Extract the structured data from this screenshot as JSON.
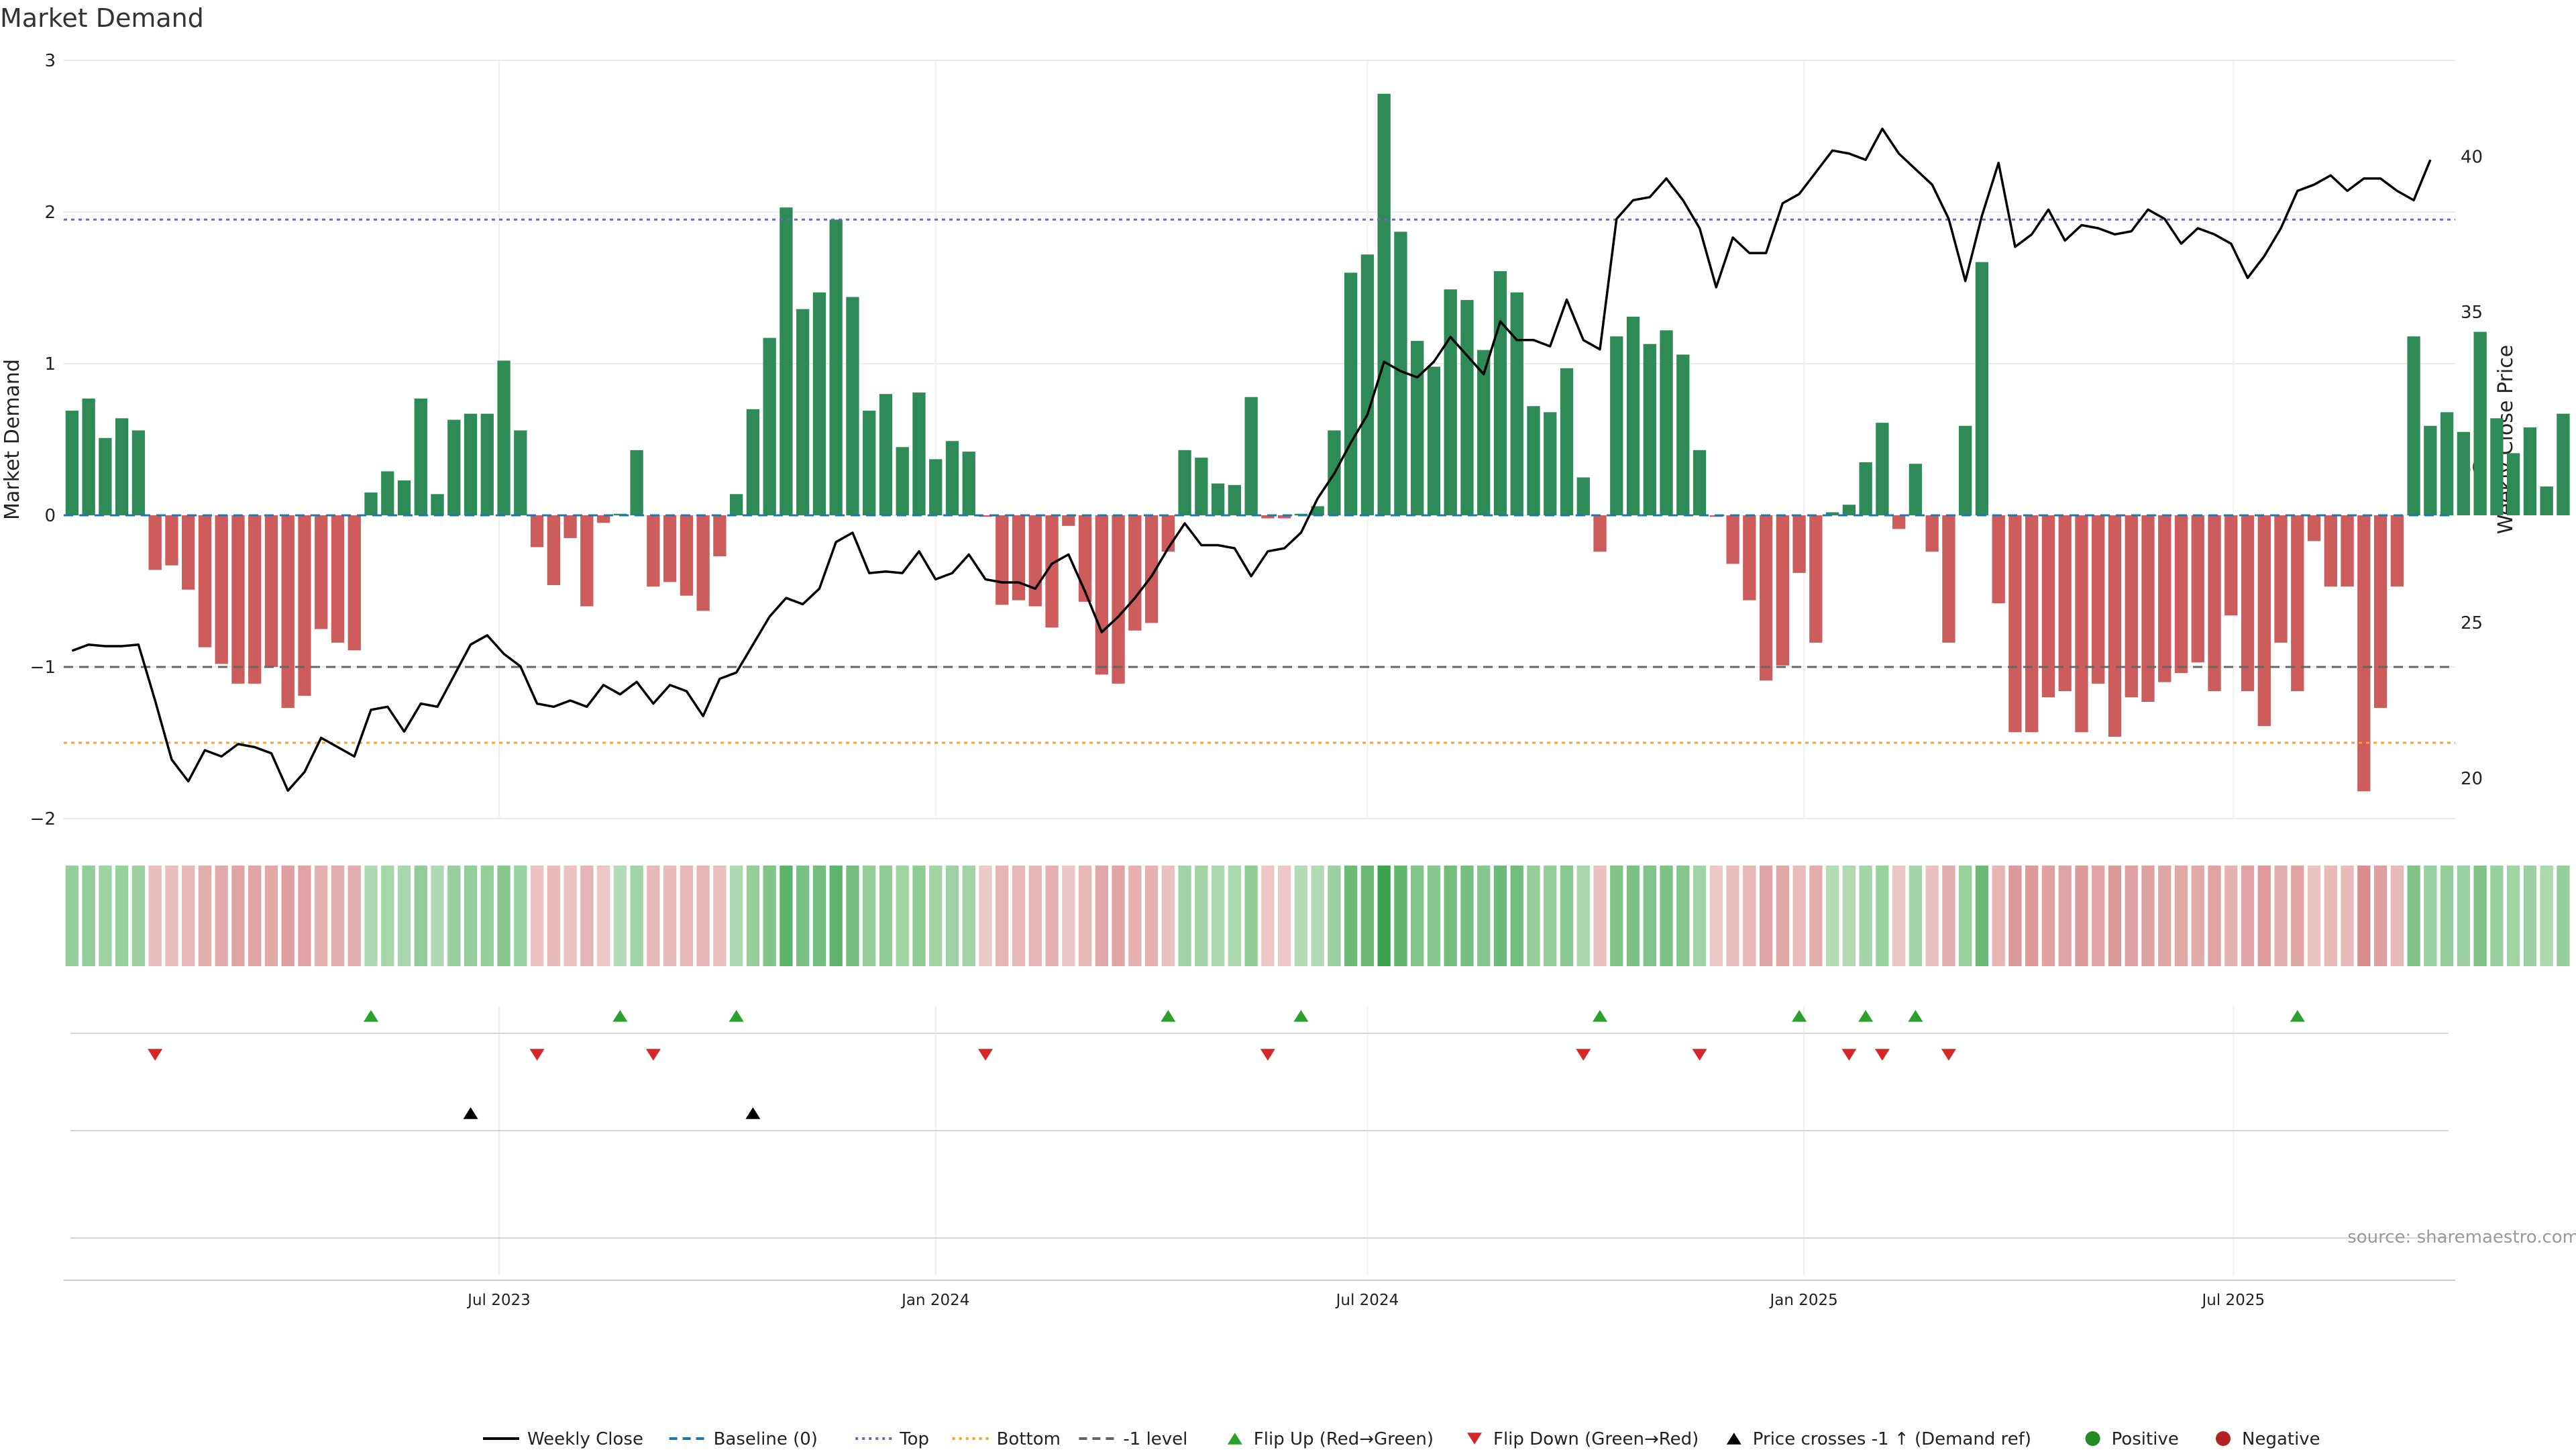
{
  "chart_data": {
    "type": "bar",
    "title": "Market Demand",
    "ylabel": "Market Demand",
    "y2label": "Weekly Close Price",
    "ylim": [
      -2,
      3
    ],
    "y2lim": [
      18.7,
      43.1
    ],
    "yticks": [
      3,
      2,
      1,
      0,
      -1,
      -2
    ],
    "ytick_labels": [
      "3",
      "2",
      "1",
      "0",
      "−1",
      "−2"
    ],
    "y2ticks": [
      40,
      35,
      30,
      25,
      20
    ],
    "y2tick_labels": [
      "40",
      "35",
      "30",
      "25",
      "20"
    ],
    "x_start": "2023-01-02",
    "week_count": 144,
    "xticks": [
      {
        "date": "2023-07-01",
        "label": "Jul 2023"
      },
      {
        "date": "2024-01-01",
        "label": "Jan 2024"
      },
      {
        "date": "2024-07-01",
        "label": "Jul 2024"
      },
      {
        "date": "2025-01-01",
        "label": "Jan 2025"
      },
      {
        "date": "2025-07-01",
        "label": "Jul 2025"
      }
    ],
    "demand": [
      0.69,
      0.77,
      0.51,
      0.64,
      0.56,
      -0.36,
      -0.33,
      -0.49,
      -0.87,
      -0.98,
      -1.11,
      -1.11,
      -1.0,
      -1.27,
      -1.19,
      -0.75,
      -0.84,
      -0.89,
      0.15,
      0.29,
      0.23,
      0.77,
      0.14,
      0.63,
      0.67,
      0.67,
      1.02,
      0.56,
      -0.21,
      -0.46,
      -0.15,
      -0.6,
      -0.05,
      0.01,
      0.43,
      -0.47,
      -0.44,
      -0.53,
      -0.63,
      -0.27,
      0.14,
      0.7,
      1.17,
      2.03,
      1.36,
      1.47,
      1.95,
      1.44,
      0.69,
      0.8,
      0.45,
      0.81,
      0.37,
      0.49,
      0.42,
      -0.01,
      -0.59,
      -0.56,
      -0.6,
      -0.74,
      -0.07,
      -0.57,
      -1.05,
      -1.11,
      -0.76,
      -0.71,
      -0.24,
      0.43,
      0.38,
      0.21,
      0.2,
      0.78,
      -0.02,
      -0.02,
      0.01,
      0.06,
      0.56,
      1.6,
      1.72,
      2.78,
      1.87,
      1.15,
      0.98,
      1.49,
      1.42,
      1.09,
      1.61,
      1.47,
      0.72,
      0.68,
      0.97,
      0.25,
      -0.24,
      1.18,
      1.31,
      1.13,
      1.22,
      1.06,
      0.43,
      -0.01,
      -0.32,
      -0.56,
      -1.09,
      -0.99,
      -0.38,
      -0.84,
      0.02,
      0.07,
      0.35,
      0.61,
      -0.09,
      0.34,
      -0.24,
      -0.84,
      0.59,
      1.67,
      -0.58,
      -1.43,
      -1.43,
      -1.2,
      -1.16,
      -1.43,
      -1.11,
      -1.46,
      -1.2,
      -1.23,
      -1.1,
      -1.04,
      -0.97,
      -1.16,
      -0.66,
      -1.16,
      -1.39,
      -0.84,
      -1.16,
      -0.17,
      -0.47,
      -0.47,
      -1.82,
      -1.27,
      -0.47,
      1.18,
      0.59,
      0.68,
      0.55,
      1.21,
      0.64,
      0.41,
      0.58,
      0.19,
      0.67
    ],
    "series": [
      {
        "name": "Weekly Close",
        "values": [
          24.1,
          24.3,
          24.25,
          24.25,
          24.3,
          22.5,
          20.6,
          19.9,
          20.9,
          20.7,
          21.1,
          21.0,
          20.8,
          19.6,
          20.2,
          21.3,
          21.0,
          20.7,
          22.2,
          22.3,
          21.5,
          22.4,
          22.3,
          23.3,
          24.3,
          24.6,
          24.0,
          23.6,
          22.4,
          22.3,
          22.5,
          22.3,
          23.0,
          22.7,
          23.1,
          22.4,
          23.0,
          22.8,
          22.0,
          23.2,
          23.4,
          24.3,
          25.2,
          25.8,
          25.6,
          26.1,
          27.6,
          27.9,
          26.6,
          26.65,
          26.6,
          27.3,
          26.4,
          26.6,
          27.2,
          26.4,
          26.3,
          26.3,
          26.1,
          26.9,
          27.2,
          26.0,
          24.7,
          25.2,
          25.8,
          26.5,
          27.4,
          28.2,
          27.5,
          27.5,
          27.4,
          26.5,
          27.3,
          27.4,
          27.9,
          29.0,
          29.8,
          30.8,
          31.7,
          33.4,
          33.1,
          32.9,
          33.4,
          34.2,
          33.6,
          33.0,
          34.7,
          34.1,
          34.1,
          33.9,
          35.4,
          34.1,
          33.8,
          38.0,
          38.6,
          38.7,
          39.3,
          38.6,
          37.7,
          35.8,
          37.4,
          36.9,
          36.9,
          38.5,
          38.8,
          39.5,
          40.2,
          40.1,
          39.9,
          40.9,
          40.1,
          39.6,
          39.1,
          38.0,
          36.0,
          38.1,
          39.8,
          37.1,
          37.5,
          38.3,
          37.3,
          37.8,
          37.7,
          37.5,
          37.6,
          38.3,
          38.0,
          37.2,
          37.7,
          37.5,
          37.2,
          36.1,
          36.8,
          37.7,
          38.9,
          39.1,
          39.4,
          38.9,
          39.3,
          39.3,
          38.9,
          38.6,
          39.9
        ]
      }
    ],
    "reference_lines": [
      {
        "name": "Baseline (0)",
        "value": 0,
        "color": "#1f77b4",
        "style": "dashed"
      },
      {
        "name": "Top",
        "value": 1.95,
        "color": "#6a6ab8",
        "style": "dotted"
      },
      {
        "name": "Bottom",
        "value": -1.5,
        "color": "#ff9f2e",
        "style": "dotted"
      },
      {
        "name": "-1 level",
        "value": -1,
        "color": "#666666",
        "style": "dashed"
      }
    ],
    "flip_up_weeks": [
      18,
      33,
      40,
      66,
      74,
      92,
      104,
      108,
      111,
      134
    ],
    "flip_down_weeks": [
      5,
      28,
      35,
      55,
      72,
      91,
      98,
      107,
      109,
      113
    ],
    "price_cross_weeks": [
      24,
      41
    ],
    "legend_position": "bottom",
    "legend": [
      {
        "label": "Weekly Close",
        "marker": "line-solid",
        "color": "#000000"
      },
      {
        "label": "Baseline (0)",
        "marker": "line-dashed",
        "color": "#1f77b4"
      },
      {
        "label": "Top",
        "marker": "line-dotted",
        "color": "#6a6ab8"
      },
      {
        "label": "Bottom",
        "marker": "line-dotted",
        "color": "#ff9f2e"
      },
      {
        "label": "-1 level",
        "marker": "line-dashed",
        "color": "#666666"
      },
      {
        "label": "Flip Up (Red→Green)",
        "marker": "triangle-up",
        "color": "#2ca02c"
      },
      {
        "label": "Flip Down (Green→Red)",
        "marker": "triangle-down",
        "color": "#d62728"
      },
      {
        "label": "Price crosses -1 ↑ (Demand ref)",
        "marker": "triangle-up",
        "color": "#000000"
      },
      {
        "label": "Positive",
        "marker": "circle",
        "color": "#228b22"
      },
      {
        "label": "Negative",
        "marker": "circle",
        "color": "#b22222"
      }
    ],
    "colors": {
      "positive": "#2e8b57",
      "negative": "#cd5c5c",
      "price": "#000000",
      "grid": "#ececec"
    },
    "source": "source: sharemaestro.com"
  }
}
